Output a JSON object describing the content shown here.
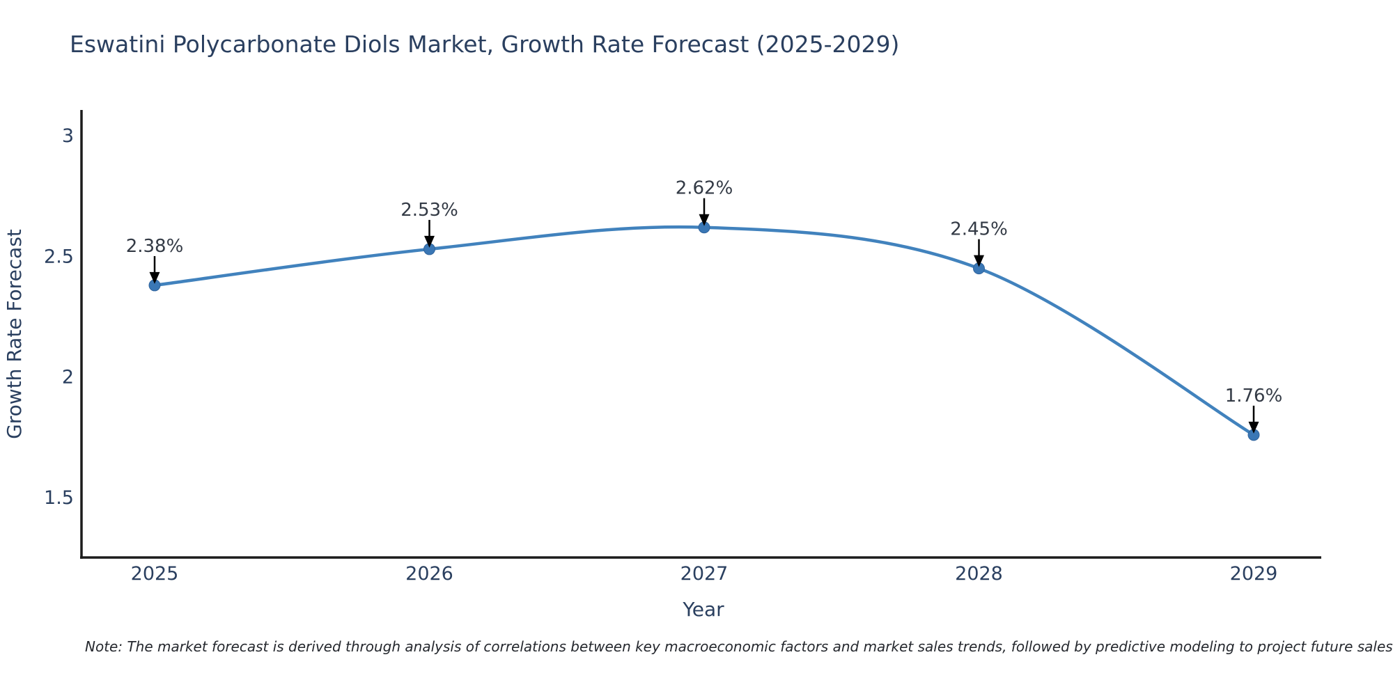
{
  "title": "Eswatini Polycarbonate Diols Market, Growth Rate Forecast (2025-2029)",
  "note": "Note: The market forecast is derived through analysis of correlations between key macroeconomic factors and market sales trends, followed by predictive modeling to project future sales",
  "chart_data": {
    "type": "line",
    "title": "Eswatini Polycarbonate Diols Market, Growth Rate Forecast (2025-2029)",
    "xlabel": "Year",
    "ylabel": "Growth Rate Forecast",
    "x": [
      2025,
      2026,
      2027,
      2028,
      2029
    ],
    "values": [
      2.38,
      2.53,
      2.62,
      2.45,
      1.76
    ],
    "point_labels": [
      "2.38%",
      "2.53%",
      "2.62%",
      "2.45%",
      "1.76%"
    ],
    "x_tick_labels": [
      "2025",
      "2026",
      "2027",
      "2028",
      "2029"
    ],
    "y_tick_values": [
      3,
      2.5,
      2,
      1.5
    ],
    "y_tick_labels": [
      "3",
      "2.5",
      "2",
      "1.5"
    ],
    "ylim": [
      1.25,
      3.1
    ],
    "grid": false,
    "legend": false,
    "line_smooth": true,
    "annotation_style": "label-above-with-down-arrow",
    "colors": {
      "line": "#4182bd",
      "marker": "#3a77b5",
      "marker_edge": "#2f639c",
      "arrow": "#000000",
      "axis_line": "#1c1c1c",
      "heading_text": "#2a3f5f",
      "tick_text": "#2a3f5f",
      "annotation_text": "#333a45",
      "note_text": "#25282e",
      "background": "#ffffff"
    }
  }
}
